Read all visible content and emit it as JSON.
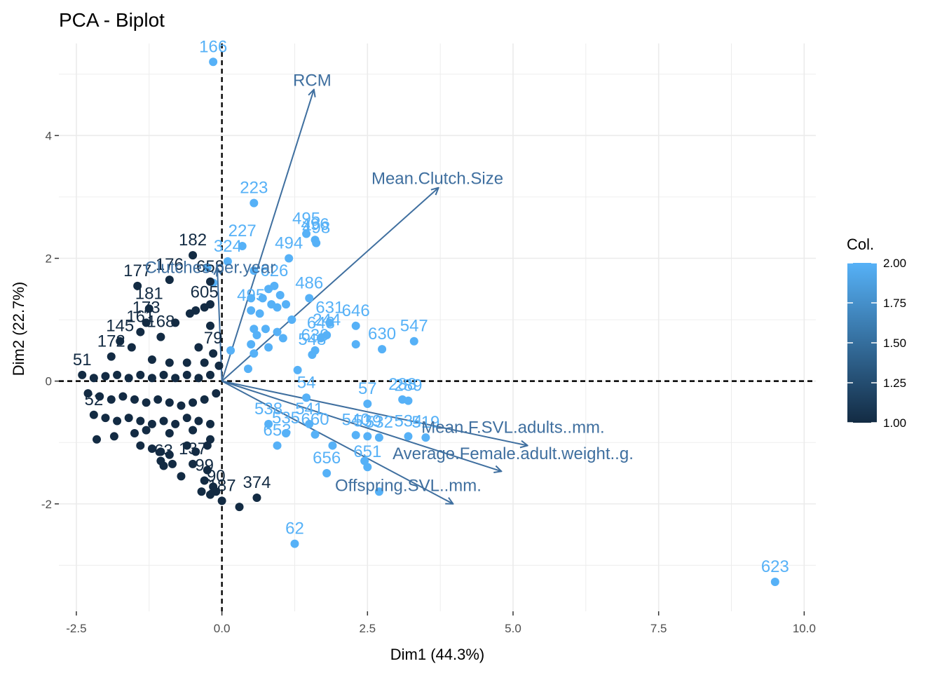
{
  "chart_data": {
    "type": "scatter",
    "title": "PCA - Biplot",
    "xlabel": "Dim1 (44.3%)",
    "ylabel": "Dim2 (22.7%)",
    "xlim": [
      -2.8,
      10.2
    ],
    "ylim": [
      -3.75,
      5.5
    ],
    "xticks": [
      -2.5,
      0,
      2.5,
      5,
      7.5,
      10
    ],
    "xtick_labels": [
      "-2.5",
      "0.0",
      "2.5",
      "5.0",
      "7.5",
      "10.0"
    ],
    "yticks": [
      -2,
      0,
      2,
      4
    ],
    "ytick_labels": [
      "-2",
      "0",
      "2",
      "4"
    ],
    "grid": true,
    "legend": {
      "title": "Col.",
      "position": "right",
      "min": 1.0,
      "max": 2.0,
      "ticks": [
        "1.00",
        "1.25",
        "1.50",
        "1.75",
        "2.00"
      ],
      "color_low": "#132b43",
      "color_high": "#56b1f7"
    },
    "points": [
      {
        "x": -0.15,
        "y": 5.2,
        "label": "166",
        "col": 2
      },
      {
        "x": 0.55,
        "y": 2.9,
        "label": "223",
        "col": 2
      },
      {
        "x": 0.35,
        "y": 2.2,
        "label": "227",
        "col": 2
      },
      {
        "x": 1.45,
        "y": 2.4,
        "label": "495",
        "col": 2
      },
      {
        "x": 1.6,
        "y": 2.3,
        "label": "496",
        "col": 2
      },
      {
        "x": 1.62,
        "y": 2.25,
        "label": "498",
        "col": 2
      },
      {
        "x": 1.15,
        "y": 2.0,
        "label": "494",
        "col": 2
      },
      {
        "x": 0.1,
        "y": 1.95,
        "label": "324",
        "col": 2
      },
      {
        "x": 0.55,
        "y": 1.8,
        "label": "",
        "col": 2
      },
      {
        "x": 0.9,
        "y": 1.55,
        "label": "626",
        "col": 2
      },
      {
        "x": 0.8,
        "y": 1.5,
        "label": "",
        "col": 2
      },
      {
        "x": 1.0,
        "y": 1.4,
        "label": "",
        "col": 2
      },
      {
        "x": 0.7,
        "y": 1.35,
        "label": "",
        "col": 2
      },
      {
        "x": 1.5,
        "y": 1.35,
        "label": "486",
        "col": 2
      },
      {
        "x": 0.5,
        "y": 1.35,
        "label": "",
        "col": 2
      },
      {
        "x": 0.85,
        "y": 1.25,
        "label": "",
        "col": 2
      },
      {
        "x": 1.1,
        "y": 1.25,
        "label": "",
        "col": 2
      },
      {
        "x": 0.95,
        "y": 1.2,
        "label": "",
        "col": 2
      },
      {
        "x": 0.5,
        "y": 1.15,
        "label": "495",
        "col": 2
      },
      {
        "x": 0.65,
        "y": 1.1,
        "label": "",
        "col": 2
      },
      {
        "x": 2.3,
        "y": 0.9,
        "label": "646",
        "col": 2
      },
      {
        "x": 1.85,
        "y": 0.95,
        "label": "631",
        "col": 2
      },
      {
        "x": 1.2,
        "y": 1.0,
        "label": "",
        "col": 2
      },
      {
        "x": 1.8,
        "y": 0.75,
        "label": "244",
        "col": 2
      },
      {
        "x": 0.75,
        "y": 0.85,
        "label": "",
        "col": 2
      },
      {
        "x": 0.55,
        "y": 0.85,
        "label": "",
        "col": 2
      },
      {
        "x": 0.95,
        "y": 0.8,
        "label": "",
        "col": 2
      },
      {
        "x": 1.7,
        "y": 0.7,
        "label": "643",
        "col": 2
      },
      {
        "x": 0.6,
        "y": 0.75,
        "label": "",
        "col": 2
      },
      {
        "x": 1.05,
        "y": 0.7,
        "label": "",
        "col": 2
      },
      {
        "x": 3.3,
        "y": 0.65,
        "label": "547",
        "col": 2
      },
      {
        "x": 2.3,
        "y": 0.6,
        "label": "",
        "col": 2
      },
      {
        "x": 2.75,
        "y": 0.52,
        "label": "630",
        "col": 2
      },
      {
        "x": 1.6,
        "y": 0.5,
        "label": "639",
        "col": 2
      },
      {
        "x": 0.5,
        "y": 0.6,
        "label": "",
        "col": 2
      },
      {
        "x": 0.8,
        "y": 0.55,
        "label": "",
        "col": 2
      },
      {
        "x": 1.55,
        "y": 0.43,
        "label": "548",
        "col": 2
      },
      {
        "x": 0.55,
        "y": 0.45,
        "label": "",
        "col": 2
      },
      {
        "x": 0.15,
        "y": 0.5,
        "label": "",
        "col": 2
      },
      {
        "x": 0.45,
        "y": 0.2,
        "label": "",
        "col": 2
      },
      {
        "x": 1.3,
        "y": 0.18,
        "label": "",
        "col": 2
      },
      {
        "x": 1.45,
        "y": -0.27,
        "label": "54",
        "col": 2
      },
      {
        "x": 2.5,
        "y": -0.37,
        "label": "57",
        "col": 2
      },
      {
        "x": 3.1,
        "y": -0.3,
        "label": "288",
        "col": 2
      },
      {
        "x": 3.2,
        "y": -0.32,
        "label": "289",
        "col": 2
      },
      {
        "x": 0.8,
        "y": -0.7,
        "label": "538",
        "col": 2
      },
      {
        "x": 1.5,
        "y": -0.7,
        "label": "541",
        "col": 2
      },
      {
        "x": 2.3,
        "y": -0.88,
        "label": "540",
        "col": 2
      },
      {
        "x": 3.2,
        "y": -0.9,
        "label": "534",
        "col": 2
      },
      {
        "x": 3.5,
        "y": -0.92,
        "label": "519",
        "col": 2
      },
      {
        "x": 1.1,
        "y": -0.85,
        "label": "535",
        "col": 2
      },
      {
        "x": 1.6,
        "y": -0.87,
        "label": "660",
        "col": 2
      },
      {
        "x": 2.5,
        "y": -0.9,
        "label": "539",
        "col": 2
      },
      {
        "x": 2.7,
        "y": -0.92,
        "label": "532",
        "col": 2
      },
      {
        "x": 0.95,
        "y": -1.05,
        "label": "653",
        "col": 2
      },
      {
        "x": 1.9,
        "y": -1.05,
        "label": "",
        "col": 2
      },
      {
        "x": 2.45,
        "y": -1.3,
        "label": "",
        "col": 2
      },
      {
        "x": 1.8,
        "y": -1.5,
        "label": "656",
        "col": 2
      },
      {
        "x": 2.5,
        "y": -1.4,
        "label": "651",
        "col": 2
      },
      {
        "x": 2.7,
        "y": -1.8,
        "label": "",
        "col": 2
      },
      {
        "x": 1.25,
        "y": -2.65,
        "label": "62",
        "col": 2
      },
      {
        "x": 9.5,
        "y": -3.27,
        "label": "623",
        "col": 2
      },
      {
        "x": -0.25,
        "y": 1.85,
        "label": "",
        "col": 2
      },
      {
        "x": -0.15,
        "y": 1.6,
        "label": "",
        "col": 2
      },
      {
        "x": -0.5,
        "y": 2.05,
        "label": "182",
        "col": 1
      },
      {
        "x": -1.45,
        "y": 1.55,
        "label": "177",
        "col": 1
      },
      {
        "x": -0.9,
        "y": 1.65,
        "label": "176",
        "col": 1
      },
      {
        "x": -0.2,
        "y": 1.62,
        "label": "658",
        "col": 1
      },
      {
        "x": -1.25,
        "y": 1.18,
        "label": "181",
        "col": 1
      },
      {
        "x": -0.3,
        "y": 1.2,
        "label": "605",
        "col": 1
      },
      {
        "x": -0.55,
        "y": 1.1,
        "label": "",
        "col": 1
      },
      {
        "x": -0.45,
        "y": 1.15,
        "label": "",
        "col": 1
      },
      {
        "x": -0.2,
        "y": 1.25,
        "label": "",
        "col": 1
      },
      {
        "x": -1.3,
        "y": 0.95,
        "label": "173",
        "col": 1
      },
      {
        "x": -0.8,
        "y": 0.95,
        "label": "",
        "col": 1
      },
      {
        "x": -0.2,
        "y": 0.9,
        "label": "",
        "col": 1
      },
      {
        "x": -1.4,
        "y": 0.8,
        "label": "161",
        "col": 1
      },
      {
        "x": -1.05,
        "y": 0.72,
        "label": "168",
        "col": 1
      },
      {
        "x": -1.75,
        "y": 0.65,
        "label": "145",
        "col": 1
      },
      {
        "x": -1.55,
        "y": 0.55,
        "label": "",
        "col": 1
      },
      {
        "x": -0.4,
        "y": 0.55,
        "label": "",
        "col": 1
      },
      {
        "x": -0.15,
        "y": 0.45,
        "label": "79",
        "col": 1
      },
      {
        "x": -1.9,
        "y": 0.4,
        "label": "172",
        "col": 1
      },
      {
        "x": -1.2,
        "y": 0.35,
        "label": "",
        "col": 1
      },
      {
        "x": -0.9,
        "y": 0.3,
        "label": "",
        "col": 1
      },
      {
        "x": -0.6,
        "y": 0.3,
        "label": "",
        "col": 1
      },
      {
        "x": -0.3,
        "y": 0.3,
        "label": "",
        "col": 1
      },
      {
        "x": -0.05,
        "y": 0.25,
        "label": "",
        "col": 1
      },
      {
        "x": -2.4,
        "y": 0.1,
        "label": "51",
        "col": 1
      },
      {
        "x": -2.2,
        "y": 0.05,
        "label": "",
        "col": 1
      },
      {
        "x": -2.0,
        "y": 0.08,
        "label": "",
        "col": 1
      },
      {
        "x": -1.8,
        "y": 0.1,
        "label": "",
        "col": 1
      },
      {
        "x": -1.6,
        "y": 0.05,
        "label": "",
        "col": 1
      },
      {
        "x": -1.4,
        "y": 0.1,
        "label": "",
        "col": 1
      },
      {
        "x": -1.2,
        "y": 0.05,
        "label": "",
        "col": 1
      },
      {
        "x": -1.0,
        "y": 0.1,
        "label": "",
        "col": 1
      },
      {
        "x": -0.8,
        "y": 0.05,
        "label": "",
        "col": 1
      },
      {
        "x": -0.6,
        "y": 0.1,
        "label": "",
        "col": 1
      },
      {
        "x": -0.4,
        "y": 0.05,
        "label": "",
        "col": 1
      },
      {
        "x": -0.2,
        "y": 0.1,
        "label": "",
        "col": 1
      },
      {
        "x": -2.3,
        "y": -0.2,
        "label": "",
        "col": 1
      },
      {
        "x": -2.1,
        "y": -0.25,
        "label": "",
        "col": 1
      },
      {
        "x": -1.9,
        "y": -0.3,
        "label": "",
        "col": 1
      },
      {
        "x": -1.7,
        "y": -0.25,
        "label": "",
        "col": 1
      },
      {
        "x": -1.5,
        "y": -0.3,
        "label": "",
        "col": 1
      },
      {
        "x": -1.3,
        "y": -0.35,
        "label": "",
        "col": 1
      },
      {
        "x": -1.1,
        "y": -0.3,
        "label": "",
        "col": 1
      },
      {
        "x": -0.9,
        "y": -0.35,
        "label": "",
        "col": 1
      },
      {
        "x": -0.7,
        "y": -0.4,
        "label": "",
        "col": 1
      },
      {
        "x": -0.5,
        "y": -0.35,
        "label": "",
        "col": 1
      },
      {
        "x": -0.3,
        "y": -0.3,
        "label": "",
        "col": 1
      },
      {
        "x": -0.1,
        "y": -0.2,
        "label": "",
        "col": 1
      },
      {
        "x": -2.2,
        "y": -0.55,
        "label": "52",
        "col": 1
      },
      {
        "x": -2.0,
        "y": -0.6,
        "label": "",
        "col": 1
      },
      {
        "x": -1.8,
        "y": -0.65,
        "label": "",
        "col": 1
      },
      {
        "x": -1.6,
        "y": -0.6,
        "label": "",
        "col": 1
      },
      {
        "x": -1.4,
        "y": -0.65,
        "label": "",
        "col": 1
      },
      {
        "x": -1.2,
        "y": -0.7,
        "label": "",
        "col": 1
      },
      {
        "x": -1.0,
        "y": -0.65,
        "label": "",
        "col": 1
      },
      {
        "x": -0.8,
        "y": -0.7,
        "label": "",
        "col": 1
      },
      {
        "x": -0.6,
        "y": -0.6,
        "label": "",
        "col": 1
      },
      {
        "x": -0.4,
        "y": -0.65,
        "label": "",
        "col": 1
      },
      {
        "x": -0.2,
        "y": -0.7,
        "label": "",
        "col": 1
      },
      {
        "x": -2.15,
        "y": -0.95,
        "label": "",
        "col": 1
      },
      {
        "x": -1.85,
        "y": -0.9,
        "label": "",
        "col": 1
      },
      {
        "x": -1.5,
        "y": -0.85,
        "label": "",
        "col": 1
      },
      {
        "x": -1.3,
        "y": -0.8,
        "label": "",
        "col": 1
      },
      {
        "x": -0.9,
        "y": -0.85,
        "label": "",
        "col": 1
      },
      {
        "x": -0.5,
        "y": -0.8,
        "label": "",
        "col": 1
      },
      {
        "x": -0.2,
        "y": -0.95,
        "label": "",
        "col": 1
      },
      {
        "x": -1.4,
        "y": -1.05,
        "label": "",
        "col": 1
      },
      {
        "x": -1.2,
        "y": -1.1,
        "label": "",
        "col": 1
      },
      {
        "x": -1.05,
        "y": -1.15,
        "label": "",
        "col": 1
      },
      {
        "x": -0.9,
        "y": -1.2,
        "label": "",
        "col": 1
      },
      {
        "x": -0.6,
        "y": -1.05,
        "label": "",
        "col": 1
      },
      {
        "x": -0.45,
        "y": -1.15,
        "label": "",
        "col": 1
      },
      {
        "x": -0.25,
        "y": -1.05,
        "label": "",
        "col": 1
      },
      {
        "x": -1.05,
        "y": -1.3,
        "label": "",
        "col": 1
      },
      {
        "x": -0.85,
        "y": -1.35,
        "label": "",
        "col": 1
      },
      {
        "x": -0.5,
        "y": -1.35,
        "label": "137",
        "col": 1
      },
      {
        "x": -0.25,
        "y": -1.45,
        "label": "",
        "col": 1
      },
      {
        "x": -1.0,
        "y": -1.38,
        "label": "63",
        "col": 1
      },
      {
        "x": -0.3,
        "y": -1.62,
        "label": "99",
        "col": 1
      },
      {
        "x": -0.7,
        "y": -1.55,
        "label": "",
        "col": 1
      },
      {
        "x": -0.15,
        "y": -1.72,
        "label": "",
        "col": 1
      },
      {
        "x": -0.35,
        "y": -1.8,
        "label": "",
        "col": 1
      },
      {
        "x": -0.1,
        "y": -1.8,
        "label": "90",
        "col": 1
      },
      {
        "x": 0.6,
        "y": -1.9,
        "label": "374",
        "col": 1
      },
      {
        "x": -0.2,
        "y": -1.85,
        "label": "",
        "col": 1
      },
      {
        "x": 0.0,
        "y": -1.95,
        "label": "187",
        "col": 1
      },
      {
        "x": 0.3,
        "y": -2.05,
        "label": "",
        "col": 1
      }
    ],
    "variables": [
      {
        "name": "RCM",
        "x": 1.58,
        "y": 4.75,
        "lx": 1.55,
        "ly": 4.9
      },
      {
        "name": "Mean.Clutch.Size",
        "x": 3.72,
        "y": 3.15,
        "lx": 3.7,
        "ly": 3.3
      },
      {
        "name": "Clutches.per.year",
        "x": -0.08,
        "y": 1.85,
        "lx": -0.2,
        "ly": 1.85
      },
      {
        "name": "Mean.F.SVL.adults..mm.",
        "x": 5.25,
        "y": -1.05,
        "lx": 5.0,
        "ly": -0.75
      },
      {
        "name": "Average.Female.adult.weight..g.",
        "x": 4.8,
        "y": -1.47,
        "lx": 5.0,
        "ly": -1.18
      },
      {
        "name": "Offspring.SVL..mm.",
        "x": 3.97,
        "y": -2.0,
        "lx": 3.2,
        "ly": -1.7
      }
    ]
  }
}
